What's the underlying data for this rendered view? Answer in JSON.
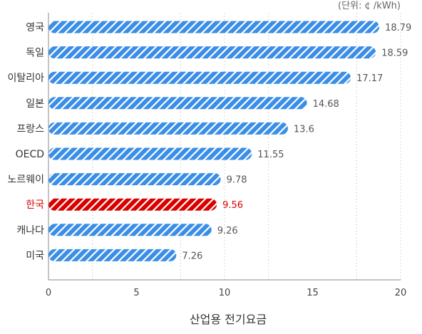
{
  "chart_data": {
    "type": "bar",
    "orientation": "horizontal",
    "unit_label": "(단위: ¢ /kWh)",
    "xlabel": "산업용 전기요금",
    "categories": [
      "영국",
      "독일",
      "이탈리아",
      "일본",
      "프랑스",
      "OECD",
      "노르웨이",
      "한국",
      "캐나다",
      "미국"
    ],
    "values": [
      18.79,
      18.59,
      17.17,
      14.68,
      13.6,
      11.55,
      9.78,
      9.56,
      9.26,
      7.26
    ],
    "value_labels": [
      "18.79",
      "18.59",
      "17.17",
      "14.68",
      "13.6",
      "11.55",
      "9.78",
      "9.56",
      "9.26",
      "7.26"
    ],
    "highlight_category": "한국",
    "xlim": [
      0,
      20
    ],
    "xticks": [
      0,
      5,
      10,
      15,
      20
    ],
    "grid": true,
    "grid_style": "dotted vertical",
    "colors": {
      "bar": "#3a8ee6",
      "bar_highlight": "#d90000",
      "stripe": "#ffffff",
      "highlight_text": "#d90000",
      "grid": "#cccccc",
      "axis": "#888888"
    }
  }
}
